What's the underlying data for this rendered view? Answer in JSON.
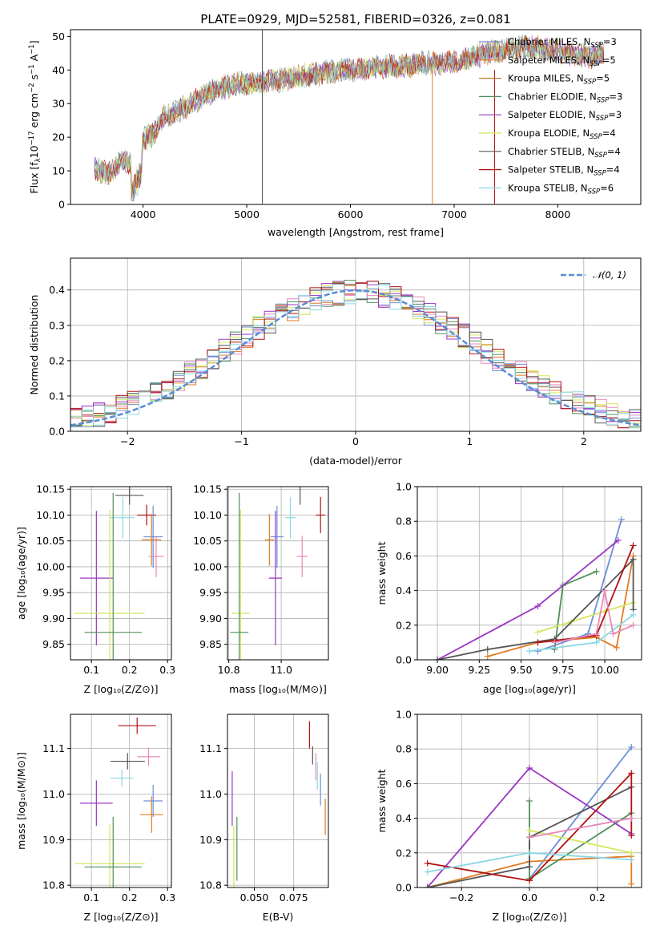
{
  "colors": {
    "chabrier_miles": "#6a8fd6",
    "salpeter_miles": "#e07b22",
    "kroupa_miles": "#c07a2a",
    "chabrier_elodie": "#4f8f5a",
    "salpeter_elodie": "#9a35c4",
    "kroupa_elodie": "#d4e85c",
    "chabrier_stelib": "#555555",
    "salpeter_stelib": "#b31212",
    "kroupa_stelib": "#8ad7e4",
    "pink": "#e887b8",
    "normal": "#5b8bd6"
  },
  "legend": {
    "rows": [
      {
        "text": "Chabrier MILES, N",
        "sub": "SSP",
        "tail": "=3",
        "color": "#6a8fd6"
      },
      {
        "text": "Salpeter MILES, N",
        "sub": "SSP",
        "tail": "=5",
        "color": "#e07b22"
      },
      {
        "text": "Kroupa MILES, N",
        "sub": "SSP",
        "tail": "=5",
        "color": "#c07a2a"
      },
      {
        "text": "Chabrier ELODIE, N",
        "sub": "SSP",
        "tail": "=3",
        "color": "#4f8f5a"
      },
      {
        "text": "Salpeter ELODIE, N",
        "sub": "SSP",
        "tail": "=3",
        "color": "#9a35c4"
      },
      {
        "text": "Kroupa ELODIE, N",
        "sub": "SSP",
        "tail": "=4",
        "color": "#d4e85c"
      },
      {
        "text": "Chabrier STELIB, N",
        "sub": "SSP",
        "tail": "=4",
        "color": "#555555"
      },
      {
        "text": "Salpeter STELIB, N",
        "sub": "SSP",
        "tail": "=4",
        "color": "#b31212"
      },
      {
        "text": "Kroupa STELIB, N",
        "sub": "SSP",
        "tail": "=6",
        "color": "#8ad7e4"
      }
    ],
    "normal_label": "𝒩(0, 1)"
  },
  "chart_data": [
    {
      "id": "spectrum",
      "type": "line",
      "title": "PLATE=0929, MJD=52581, FIBERID=0326, z=0.081",
      "xlabel": "wavelength [Angstrom, rest frame]",
      "ylabel": "Flux [fλ10⁻¹⁷ erg cm⁻² s⁻¹ A⁻¹]",
      "xlim": [
        3300,
        8800
      ],
      "ylim": [
        0,
        52
      ],
      "xticks": [
        4000,
        5000,
        6000,
        7000,
        8000
      ],
      "yticks": [
        0,
        10,
        20,
        30,
        40,
        50
      ],
      "grid": false,
      "legend_position": "top-right",
      "continuum": {
        "x": [
          3530,
          3650,
          3800,
          3900,
          4000,
          4100,
          4200,
          4300,
          4500,
          4700,
          4900,
          5100,
          5300,
          5500,
          5700,
          5900,
          6100,
          6300,
          6500,
          6700,
          6900,
          7100,
          7300,
          7500,
          7700,
          7900,
          8100,
          8300,
          8450
        ],
        "y": [
          11,
          9,
          13,
          12,
          19,
          21,
          26,
          27,
          31,
          34,
          36,
          36,
          37,
          38,
          39,
          40,
          40,
          41,
          41,
          42,
          42,
          43,
          45,
          46,
          47,
          46,
          45,
          44,
          45
        ]
      },
      "spikes": [
        5150,
        6790,
        7390
      ]
    },
    {
      "id": "residuals",
      "type": "histogram",
      "xlabel": "(data-model)/error",
      "ylabel": "Normed distribution",
      "xlim": [
        -2.5,
        2.5
      ],
      "ylim": [
        0,
        0.49
      ],
      "xticks": [
        -2,
        -1,
        0,
        1,
        2
      ],
      "yticks": [
        0.0,
        0.1,
        0.2,
        0.3,
        0.4
      ],
      "grid": true,
      "legend_position": "top-right",
      "bin_width": 0.1
    },
    {
      "id": "age_vs_Z",
      "type": "scatter",
      "xlabel": "Z [log₁₀(Z/Z⊙)]",
      "ylabel": "age  [log₁₀(age/yr)]",
      "xlim": [
        0.045,
        0.31
      ],
      "ylim": [
        9.82,
        10.155
      ],
      "xticks": [
        0.1,
        0.2,
        0.3
      ],
      "yticks": [
        9.85,
        9.9,
        9.95,
        10.0,
        10.05,
        10.1,
        10.15
      ],
      "grid": true,
      "points": [
        {
          "x": 0.2,
          "y": 10.138,
          "xerr": 0.037,
          "yerr": 0.018,
          "color": "#555555"
        },
        {
          "x": 0.245,
          "y": 10.1,
          "xerr": 0.025,
          "yerr": 0.02,
          "color": "#b31212"
        },
        {
          "x": 0.182,
          "y": 10.095,
          "xerr": 0.032,
          "yerr": 0.04,
          "color": "#8ad7e4"
        },
        {
          "x": 0.262,
          "y": 10.058,
          "xerr": 0.025,
          "yerr": 0.06,
          "color": "#6a8fd6"
        },
        {
          "x": 0.258,
          "y": 10.052,
          "xerr": 0.025,
          "yerr": 0.05,
          "color": "#e07b22"
        },
        {
          "x": 0.27,
          "y": 10.02,
          "xerr": 0.02,
          "yerr": 0.04,
          "color": "#e887b8"
        },
        {
          "x": 0.113,
          "y": 9.978,
          "xerr": 0.043,
          "yerr": 0.13,
          "color": "#9a35c4"
        },
        {
          "x": 0.148,
          "y": 9.91,
          "xerr": 0.092,
          "yerr": 0.2,
          "color": "#d4e85c"
        },
        {
          "x": 0.157,
          "y": 9.873,
          "xerr": 0.075,
          "yerr": 0.27,
          "color": "#4f8f5a"
        }
      ]
    },
    {
      "id": "age_vs_mass",
      "type": "scatter",
      "xlabel": "mass [log₁₀(M/M⊙)]",
      "ylabel": "",
      "xlim": [
        10.795,
        11.18
      ],
      "ylim": [
        9.82,
        10.155
      ],
      "xticks": [
        10.8,
        11.0
      ],
      "yticks": [
        9.85,
        9.9,
        9.95,
        10.0,
        10.05,
        10.1,
        10.15
      ],
      "grid": true,
      "points": [
        {
          "x": 11.072,
          "y": 10.138,
          "xerr": 0.0,
          "yerr": 0.018,
          "color": "#555555"
        },
        {
          "x": 11.15,
          "y": 10.1,
          "xerr": 0.018,
          "yerr": 0.035,
          "color": "#b31212"
        },
        {
          "x": 11.035,
          "y": 10.095,
          "xerr": 0.02,
          "yerr": 0.04,
          "color": "#8ad7e4"
        },
        {
          "x": 10.984,
          "y": 10.058,
          "xerr": 0.025,
          "yerr": 0.06,
          "color": "#6a8fd6"
        },
        {
          "x": 10.955,
          "y": 10.052,
          "xerr": 0.018,
          "yerr": 0.05,
          "color": "#e07b22"
        },
        {
          "x": 11.08,
          "y": 10.02,
          "xerr": 0.02,
          "yerr": 0.04,
          "color": "#e887b8"
        },
        {
          "x": 10.978,
          "y": 9.978,
          "xerr": 0.025,
          "yerr": 0.13,
          "color": "#9a35c4"
        },
        {
          "x": 10.845,
          "y": 9.91,
          "xerr": 0.035,
          "yerr": 0.2,
          "color": "#d4e85c"
        },
        {
          "x": 10.84,
          "y": 9.873,
          "xerr": 0.035,
          "yerr": 0.27,
          "color": "#4f8f5a"
        }
      ]
    },
    {
      "id": "weight_vs_age",
      "type": "line",
      "xlabel": "age  [log₁₀(age/yr)]",
      "ylabel": "mass weight",
      "xlim": [
        8.88,
        10.22
      ],
      "ylim": [
        0,
        1
      ],
      "xticks": [
        9.0,
        9.25,
        9.5,
        9.75,
        10.0
      ],
      "yticks": [
        0.0,
        0.2,
        0.4,
        0.6,
        0.8,
        1.0
      ],
      "grid": true,
      "series": [
        {
          "color": "#6a8fd6",
          "x": [
            9.6,
            9.9,
            10.1
          ],
          "y": [
            0.05,
            0.15,
            0.81
          ]
        },
        {
          "color": "#e07b22",
          "x": [
            9.3,
            9.6,
            9.95,
            10.07,
            10.17
          ],
          "y": [
            0.02,
            0.1,
            0.13,
            0.07,
            0.6
          ]
        },
        {
          "color": "#4f8f5a",
          "x": [
            9.7,
            9.75,
            9.95
          ],
          "y": [
            0.06,
            0.43,
            0.51
          ]
        },
        {
          "color": "#9a35c4",
          "x": [
            9.0,
            9.6,
            10.08
          ],
          "y": [
            0.0,
            0.31,
            0.69
          ]
        },
        {
          "color": "#d4e85c",
          "x": [
            9.6,
            9.8,
            10.0,
            10.17
          ],
          "y": [
            0.16,
            0.22,
            0.28,
            0.33
          ]
        },
        {
          "color": "#555555",
          "x": [
            9.0,
            9.3,
            9.7,
            10.17,
            10.17
          ],
          "y": [
            0.0,
            0.06,
            0.12,
            0.58,
            0.29
          ]
        },
        {
          "color": "#b31212",
          "x": [
            9.6,
            9.95,
            10.17
          ],
          "y": [
            0.1,
            0.14,
            0.66
          ]
        },
        {
          "color": "#8ad7e4",
          "x": [
            9.55,
            9.95,
            10.17
          ],
          "y": [
            0.05,
            0.1,
            0.26
          ]
        },
        {
          "color": "#e887b8",
          "x": [
            9.7,
            9.95,
            10.0,
            10.05,
            10.17
          ],
          "y": [
            0.1,
            0.15,
            0.4,
            0.15,
            0.2
          ]
        }
      ]
    },
    {
      "id": "mass_vs_Z",
      "type": "scatter",
      "xlabel": "Z [log₁₀(Z/Z⊙)]",
      "ylabel": "mass [log₁₀(M/M⊙)]",
      "xlim": [
        0.045,
        0.31
      ],
      "ylim": [
        10.795,
        11.175
      ],
      "xticks": [
        0.1,
        0.2,
        0.3
      ],
      "yticks": [
        10.8,
        10.9,
        11.0,
        11.1
      ],
      "grid": true,
      "points": [
        {
          "x": 0.22,
          "y": 11.15,
          "xerr": 0.05,
          "yerr": 0.018,
          "color": "#b31212"
        },
        {
          "x": 0.25,
          "y": 11.082,
          "xerr": 0.03,
          "yerr": 0.02,
          "color": "#e887b8"
        },
        {
          "x": 0.195,
          "y": 11.072,
          "xerr": 0.045,
          "yerr": 0.018,
          "color": "#555555"
        },
        {
          "x": 0.18,
          "y": 11.035,
          "xerr": 0.03,
          "yerr": 0.018,
          "color": "#8ad7e4"
        },
        {
          "x": 0.262,
          "y": 10.985,
          "xerr": 0.025,
          "yerr": 0.035,
          "color": "#6a8fd6"
        },
        {
          "x": 0.113,
          "y": 10.98,
          "xerr": 0.043,
          "yerr": 0.05,
          "color": "#9a35c4"
        },
        {
          "x": 0.258,
          "y": 10.955,
          "xerr": 0.03,
          "yerr": 0.04,
          "color": "#e07b22"
        },
        {
          "x": 0.148,
          "y": 10.847,
          "xerr": 0.092,
          "yerr": 0.088,
          "color": "#d4e85c"
        },
        {
          "x": 0.157,
          "y": 10.84,
          "xerr": 0.075,
          "yerr": 0.11,
          "color": "#4f8f5a"
        }
      ]
    },
    {
      "id": "mass_vs_ebv",
      "type": "scatter",
      "xlabel": "E(B-V)",
      "ylabel": "",
      "xlim": [
        0.033,
        0.097
      ],
      "ylim": [
        10.795,
        11.175
      ],
      "xticks": [
        0.05,
        0.075
      ],
      "yticks": [
        10.8,
        10.9,
        11.0,
        11.1
      ],
      "grid": true,
      "points": [
        {
          "x": 0.085,
          "y": 11.13,
          "xerr": 0,
          "yerr": 0.03,
          "color": "#b31212"
        },
        {
          "x": 0.087,
          "y": 11.085,
          "xerr": 0,
          "yerr": 0.02,
          "color": "#555555"
        },
        {
          "x": 0.089,
          "y": 11.06,
          "xerr": 0,
          "yerr": 0.03,
          "color": "#e887b8"
        },
        {
          "x": 0.09,
          "y": 11.04,
          "xerr": 0,
          "yerr": 0.03,
          "color": "#8ad7e4"
        },
        {
          "x": 0.092,
          "y": 11.01,
          "xerr": 0,
          "yerr": 0.035,
          "color": "#6a8fd6"
        },
        {
          "x": 0.095,
          "y": 10.95,
          "xerr": 0,
          "yerr": 0.04,
          "color": "#e07b22"
        },
        {
          "x": 0.036,
          "y": 10.99,
          "xerr": 0,
          "yerr": 0.06,
          "color": "#9a35c4"
        },
        {
          "x": 0.039,
          "y": 10.88,
          "xerr": 0,
          "yerr": 0.07,
          "color": "#4f8f5a"
        },
        {
          "x": 0.037,
          "y": 10.86,
          "xerr": 0,
          "yerr": 0.07,
          "color": "#d4e85c"
        }
      ]
    },
    {
      "id": "weight_vs_Z",
      "type": "line",
      "xlabel": "Z [log₁₀(Z/Z⊙)]",
      "ylabel": "mass weight",
      "xlim": [
        -0.33,
        0.33
      ],
      "ylim": [
        0,
        1
      ],
      "xticks": [
        -0.2,
        0.0,
        0.2
      ],
      "yticks": [
        0.0,
        0.2,
        0.4,
        0.6,
        0.8,
        1.0
      ],
      "grid": true,
      "series": [
        {
          "color": "#6a8fd6",
          "x": [
            0.0,
            0.3
          ],
          "y": [
            0.05,
            0.81
          ]
        },
        {
          "color": "#e07b22",
          "x": [
            -0.3,
            0.0,
            0.3,
            0.3
          ],
          "y": [
            0.0,
            0.15,
            0.18,
            0.02
          ]
        },
        {
          "color": "#4f8f5a",
          "x": [
            0.0,
            0.0,
            0.3
          ],
          "y": [
            0.5,
            0.05,
            0.43
          ]
        },
        {
          "color": "#9a35c4",
          "x": [
            -0.3,
            0.0,
            0.3
          ],
          "y": [
            0.0,
            0.69,
            0.31
          ]
        },
        {
          "color": "#d4e85c",
          "x": [
            0.0,
            0.3
          ],
          "y": [
            0.33,
            0.2
          ]
        },
        {
          "color": "#555555",
          "x": [
            -0.3,
            0.0,
            0.0,
            0.3
          ],
          "y": [
            0.0,
            0.12,
            0.29,
            0.58
          ]
        },
        {
          "color": "#b31212",
          "x": [
            -0.3,
            0.0,
            0.3,
            0.3
          ],
          "y": [
            0.14,
            0.04,
            0.66,
            0.3
          ]
        },
        {
          "color": "#8ad7e4",
          "x": [
            -0.3,
            0.0,
            0.3
          ],
          "y": [
            0.09,
            0.2,
            0.16
          ]
        },
        {
          "color": "#e887b8",
          "x": [
            0.0,
            0.3
          ],
          "y": [
            0.29,
            0.4
          ]
        }
      ]
    }
  ]
}
